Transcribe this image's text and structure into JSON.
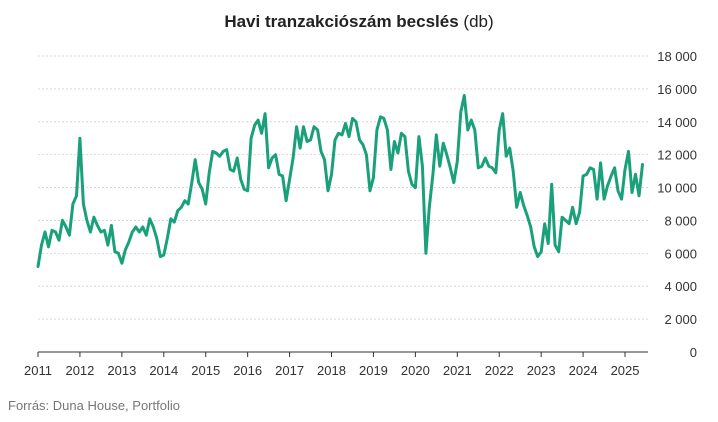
{
  "title": "Havi tranzakciószám becslés",
  "title_unit": "(db)",
  "source": "Forrás: Duna House, Portfolio",
  "colors": {
    "line": "#1aa07a",
    "grid": "#d9d9d9",
    "text": "#333333"
  },
  "chart_data": {
    "type": "line",
    "title": "Havi tranzakciószám becslés (db)",
    "xlabel": "",
    "ylabel": "",
    "xlim": [
      2011,
      2025.5
    ],
    "ylim": [
      0,
      18000
    ],
    "grid": true,
    "y_axis_side": "right",
    "y_ticks": [
      {
        "value": 0,
        "label": "0"
      },
      {
        "value": 2000,
        "label": "2 000"
      },
      {
        "value": 4000,
        "label": "4 000"
      },
      {
        "value": 6000,
        "label": "6 000"
      },
      {
        "value": 8000,
        "label": "8 000"
      },
      {
        "value": 10000,
        "label": "10 000"
      },
      {
        "value": 12000,
        "label": "12 000"
      },
      {
        "value": 14000,
        "label": "14 000"
      },
      {
        "value": 16000,
        "label": "16 000"
      },
      {
        "value": 18000,
        "label": "18 000"
      }
    ],
    "x_ticks": [
      {
        "value": 2011,
        "label": "2011"
      },
      {
        "value": 2012,
        "label": "2012"
      },
      {
        "value": 2013,
        "label": "2013"
      },
      {
        "value": 2014,
        "label": "2014"
      },
      {
        "value": 2015,
        "label": "2015"
      },
      {
        "value": 2016,
        "label": "2016"
      },
      {
        "value": 2017,
        "label": "2017"
      },
      {
        "value": 2018,
        "label": "2018"
      },
      {
        "value": 2019,
        "label": "2019"
      },
      {
        "value": 2020,
        "label": "2020"
      },
      {
        "value": 2021,
        "label": "2021"
      },
      {
        "value": 2022,
        "label": "2022"
      },
      {
        "value": 2023,
        "label": "2023"
      },
      {
        "value": 2024,
        "label": "2024"
      },
      {
        "value": 2025,
        "label": "2025"
      }
    ],
    "series": [
      {
        "points": [
          [
            2011.0,
            5200
          ],
          [
            2011.083,
            6500
          ],
          [
            2011.167,
            7300
          ],
          [
            2011.25,
            6400
          ],
          [
            2011.333,
            7400
          ],
          [
            2011.417,
            7300
          ],
          [
            2011.5,
            6800
          ],
          [
            2011.583,
            8000
          ],
          [
            2011.667,
            7600
          ],
          [
            2011.75,
            7100
          ],
          [
            2011.833,
            9000
          ],
          [
            2011.917,
            9500
          ],
          [
            2012.0,
            13000
          ],
          [
            2012.083,
            9000
          ],
          [
            2012.167,
            8000
          ],
          [
            2012.25,
            7300
          ],
          [
            2012.333,
            8200
          ],
          [
            2012.417,
            7700
          ],
          [
            2012.5,
            7300
          ],
          [
            2012.583,
            7400
          ],
          [
            2012.667,
            6500
          ],
          [
            2012.75,
            7700
          ],
          [
            2012.833,
            6100
          ],
          [
            2012.917,
            6000
          ],
          [
            2013.0,
            5400
          ],
          [
            2013.083,
            6200
          ],
          [
            2013.167,
            6700
          ],
          [
            2013.25,
            7300
          ],
          [
            2013.333,
            7600
          ],
          [
            2013.417,
            7300
          ],
          [
            2013.5,
            7600
          ],
          [
            2013.583,
            7100
          ],
          [
            2013.667,
            8100
          ],
          [
            2013.75,
            7600
          ],
          [
            2013.833,
            6900
          ],
          [
            2013.917,
            5800
          ],
          [
            2014.0,
            5900
          ],
          [
            2014.083,
            6900
          ],
          [
            2014.167,
            8100
          ],
          [
            2014.25,
            7900
          ],
          [
            2014.333,
            8600
          ],
          [
            2014.417,
            8800
          ],
          [
            2014.5,
            9200
          ],
          [
            2014.583,
            9000
          ],
          [
            2014.667,
            10300
          ],
          [
            2014.75,
            11700
          ],
          [
            2014.833,
            10300
          ],
          [
            2014.917,
            9900
          ],
          [
            2015.0,
            9000
          ],
          [
            2015.083,
            10900
          ],
          [
            2015.167,
            12200
          ],
          [
            2015.25,
            12100
          ],
          [
            2015.333,
            11900
          ],
          [
            2015.417,
            12200
          ],
          [
            2015.5,
            12300
          ],
          [
            2015.583,
            11100
          ],
          [
            2015.667,
            11000
          ],
          [
            2015.75,
            11800
          ],
          [
            2015.833,
            10500
          ],
          [
            2015.917,
            9900
          ],
          [
            2016.0,
            9800
          ],
          [
            2016.083,
            13000
          ],
          [
            2016.167,
            13800
          ],
          [
            2016.25,
            14100
          ],
          [
            2016.333,
            13300
          ],
          [
            2016.417,
            14500
          ],
          [
            2016.5,
            11200
          ],
          [
            2016.583,
            11800
          ],
          [
            2016.667,
            12000
          ],
          [
            2016.75,
            10800
          ],
          [
            2016.833,
            10700
          ],
          [
            2016.917,
            9200
          ],
          [
            2017.0,
            10500
          ],
          [
            2017.083,
            11800
          ],
          [
            2017.167,
            13700
          ],
          [
            2017.25,
            12400
          ],
          [
            2017.333,
            13700
          ],
          [
            2017.417,
            12800
          ],
          [
            2017.5,
            12900
          ],
          [
            2017.583,
            13700
          ],
          [
            2017.667,
            13500
          ],
          [
            2017.75,
            12200
          ],
          [
            2017.833,
            11700
          ],
          [
            2017.917,
            9800
          ],
          [
            2018.0,
            10800
          ],
          [
            2018.083,
            12900
          ],
          [
            2018.167,
            13300
          ],
          [
            2018.25,
            13200
          ],
          [
            2018.333,
            13900
          ],
          [
            2018.417,
            13100
          ],
          [
            2018.5,
            14200
          ],
          [
            2018.583,
            14000
          ],
          [
            2018.667,
            12900
          ],
          [
            2018.75,
            12600
          ],
          [
            2018.833,
            12000
          ],
          [
            2018.917,
            9800
          ],
          [
            2019.0,
            10600
          ],
          [
            2019.083,
            13500
          ],
          [
            2019.167,
            14300
          ],
          [
            2019.25,
            14200
          ],
          [
            2019.333,
            13500
          ],
          [
            2019.417,
            11100
          ],
          [
            2019.5,
            12800
          ],
          [
            2019.583,
            12100
          ],
          [
            2019.667,
            13300
          ],
          [
            2019.75,
            13100
          ],
          [
            2019.833,
            11000
          ],
          [
            2019.917,
            10200
          ],
          [
            2020.0,
            10000
          ],
          [
            2020.083,
            13100
          ],
          [
            2020.167,
            11300
          ],
          [
            2020.25,
            6000
          ],
          [
            2020.333,
            8800
          ],
          [
            2020.417,
            10800
          ],
          [
            2020.5,
            13200
          ],
          [
            2020.583,
            11300
          ],
          [
            2020.667,
            12700
          ],
          [
            2020.75,
            12000
          ],
          [
            2020.833,
            11200
          ],
          [
            2020.917,
            10300
          ],
          [
            2021.0,
            11600
          ],
          [
            2021.083,
            14600
          ],
          [
            2021.167,
            15600
          ],
          [
            2021.25,
            13500
          ],
          [
            2021.333,
            14100
          ],
          [
            2021.417,
            13500
          ],
          [
            2021.5,
            11200
          ],
          [
            2021.583,
            11300
          ],
          [
            2021.667,
            11800
          ],
          [
            2021.75,
            11300
          ],
          [
            2021.833,
            11200
          ],
          [
            2021.917,
            10900
          ],
          [
            2022.0,
            13500
          ],
          [
            2022.083,
            14500
          ],
          [
            2022.167,
            11900
          ],
          [
            2022.25,
            12400
          ],
          [
            2022.333,
            11000
          ],
          [
            2022.417,
            8800
          ],
          [
            2022.5,
            9700
          ],
          [
            2022.583,
            8900
          ],
          [
            2022.667,
            8300
          ],
          [
            2022.75,
            7600
          ],
          [
            2022.833,
            6400
          ],
          [
            2022.917,
            5800
          ],
          [
            2023.0,
            6100
          ],
          [
            2023.083,
            7800
          ],
          [
            2023.167,
            6600
          ],
          [
            2023.25,
            10200
          ],
          [
            2023.333,
            6500
          ],
          [
            2023.417,
            6100
          ],
          [
            2023.5,
            8200
          ],
          [
            2023.583,
            8000
          ],
          [
            2023.667,
            7800
          ],
          [
            2023.75,
            8800
          ],
          [
            2023.833,
            7800
          ],
          [
            2023.917,
            8500
          ],
          [
            2024.0,
            10700
          ],
          [
            2024.083,
            10800
          ],
          [
            2024.167,
            11200
          ],
          [
            2024.25,
            11100
          ],
          [
            2024.333,
            9300
          ],
          [
            2024.417,
            11500
          ],
          [
            2024.5,
            9300
          ],
          [
            2024.583,
            10100
          ],
          [
            2024.667,
            10700
          ],
          [
            2024.75,
            11200
          ],
          [
            2024.833,
            9800
          ],
          [
            2024.917,
            9300
          ],
          [
            2025.0,
            11100
          ],
          [
            2025.083,
            12200
          ],
          [
            2025.167,
            9700
          ],
          [
            2025.25,
            10800
          ],
          [
            2025.333,
            9500
          ],
          [
            2025.417,
            11400
          ]
        ]
      }
    ]
  }
}
